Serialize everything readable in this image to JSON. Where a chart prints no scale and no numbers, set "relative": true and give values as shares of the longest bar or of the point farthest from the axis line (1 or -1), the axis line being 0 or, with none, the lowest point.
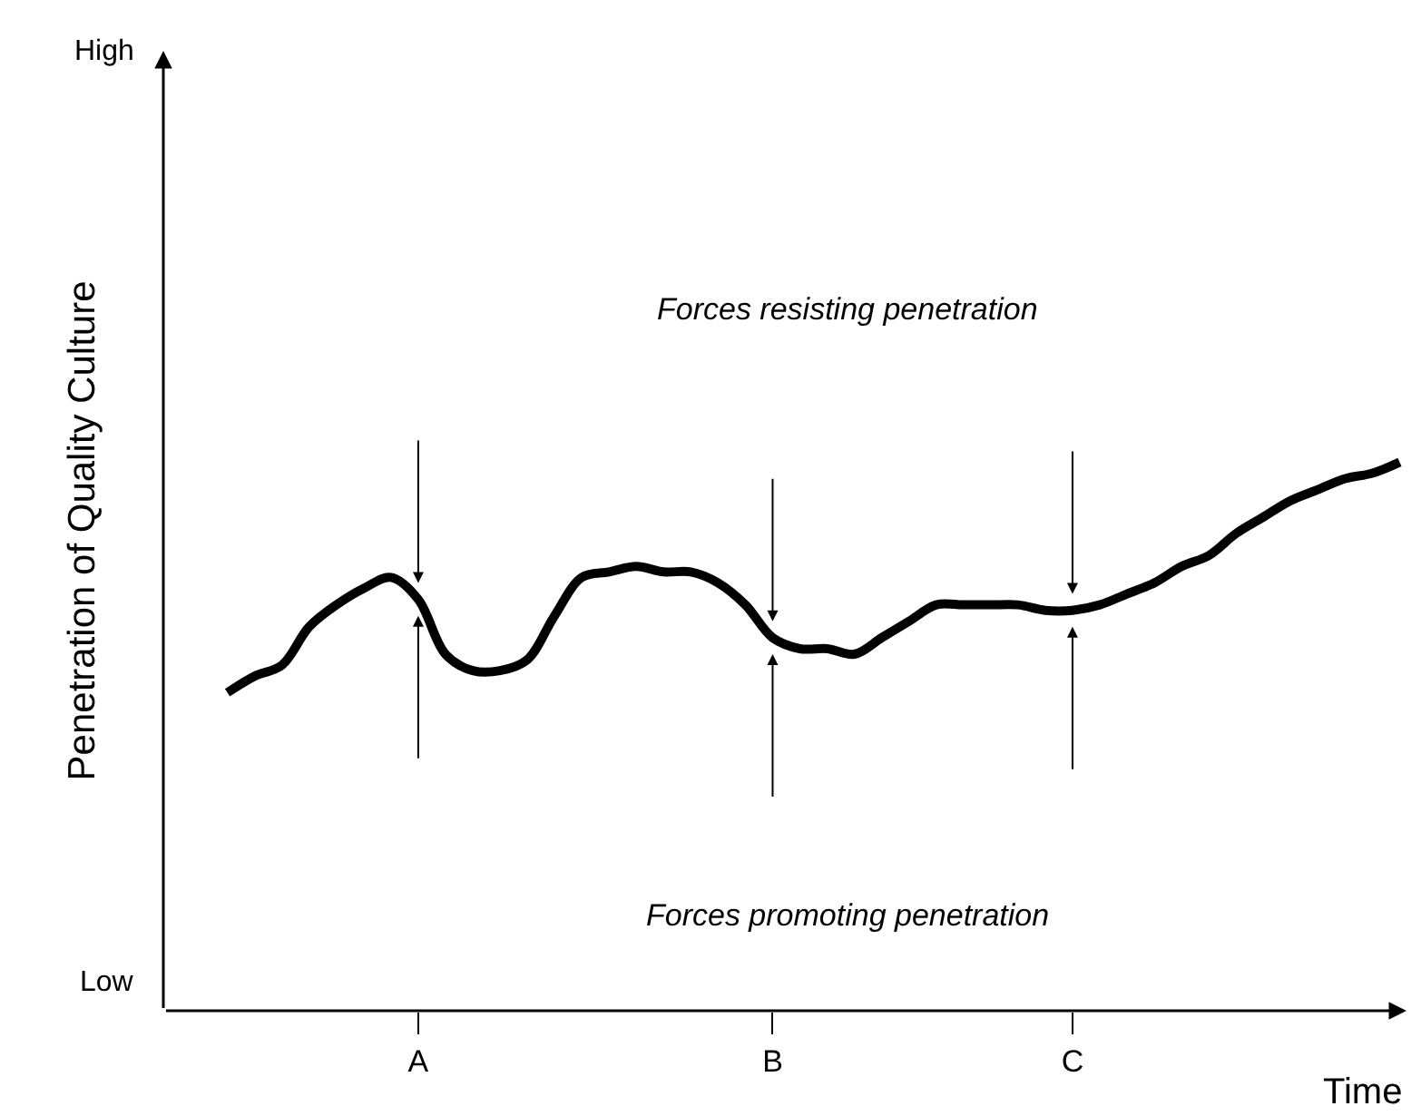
{
  "chart_data": {
    "type": "line",
    "relative": true,
    "xlabel": "Time",
    "ylabel": "Penetration of Quality Culture",
    "categories": [
      null,
      null,
      null,
      null,
      null,
      null,
      null,
      "A",
      null,
      null,
      null,
      null,
      null,
      null,
      null,
      null,
      null,
      null,
      null,
      null,
      "B",
      null,
      null,
      null,
      null,
      null,
      null,
      null,
      null,
      null,
      null,
      "C",
      null,
      null,
      null,
      null,
      null,
      null,
      null,
      null,
      null,
      null,
      null,
      null
    ],
    "annotations": [
      "High",
      "Low",
      "Forces resisting penetration",
      "Forces promoting penetration"
    ],
    "marker": "none",
    "line_style": "solid",
    "series": [
      {
        "color": "#000000",
        "values": [
          0.58,
          0.61,
          0.63,
          0.7,
          0.74,
          0.77,
          0.79,
          0.75,
          0.65,
          0.62,
          0.62,
          0.64,
          0.72,
          0.79,
          0.8,
          0.81,
          0.8,
          0.8,
          0.78,
          0.74,
          0.68,
          0.66,
          0.66,
          0.65,
          0.68,
          0.71,
          0.74,
          0.74,
          0.74,
          0.74,
          0.73,
          0.73,
          0.74,
          0.76,
          0.78,
          0.81,
          0.83,
          0.87,
          0.9,
          0.93,
          0.95,
          0.97,
          0.98,
          1.0
        ]
      }
    ]
  }
}
